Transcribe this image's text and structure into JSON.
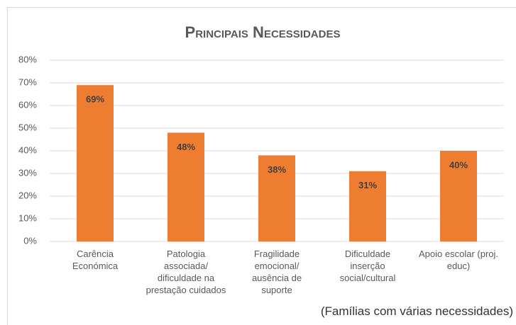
{
  "chart_data": {
    "type": "bar",
    "title": "Principais Necessidades",
    "categories": [
      "Carência Económica",
      "Patologia associada/ dificuldade na prestação cuidados",
      "Fragilidade emocional/ ausência de suporte",
      "Dificuldade inserção social/cultural",
      "Apoio escolar (proj. educ)"
    ],
    "values": [
      69,
      48,
      38,
      31,
      40
    ],
    "value_labels": [
      "69%",
      "48%",
      "38%",
      "31%",
      "40%"
    ],
    "color": "#ed7d31",
    "ylim": [
      0,
      80
    ],
    "yticks": [
      {
        "value": 0,
        "label": "0%"
      },
      {
        "value": 10,
        "label": "10%"
      },
      {
        "value": 20,
        "label": "20%"
      },
      {
        "value": 30,
        "label": "30%"
      },
      {
        "value": 40,
        "label": "40%"
      },
      {
        "value": 50,
        "label": "50%"
      },
      {
        "value": 60,
        "label": "60%"
      },
      {
        "value": 70,
        "label": "70%"
      },
      {
        "value": 80,
        "label": "80%"
      }
    ],
    "grid": true,
    "annotation": "(Famílias com várias necessidades)"
  }
}
